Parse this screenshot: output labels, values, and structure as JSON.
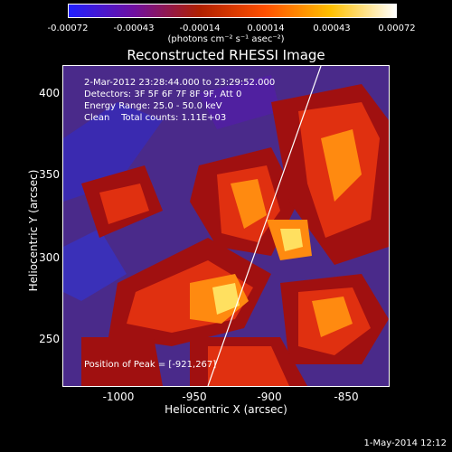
{
  "colorbar": {
    "ticks": [
      "-0.00072",
      "-0.00043",
      "-0.00014",
      "0.00014",
      "0.00043",
      "0.00072"
    ],
    "units": "(photons cm⁻² s⁻¹ asec⁻²)",
    "colors": [
      "#2020ff",
      "#7010a0",
      "#b02000",
      "#ff5000",
      "#ffc000",
      "#ffffff"
    ]
  },
  "title": "Reconstructed RHESSI Image",
  "info": {
    "time": "2-Mar-2012 23:28:44.000 to 23:29:52.000",
    "detectors": "Detectors: 3F 5F 6F 7F 8F 9F, Att 0",
    "energy": "Energy Range: 25.0 - 50.0 keV",
    "clean": "Clean    Total counts: 1.11E+03",
    "peak": "Position of Peak = [-921,267]"
  },
  "axes": {
    "x_label": "Heliocentric X (arcsec)",
    "y_label": "Heliocentric Y (arcsec)",
    "x_ticks": [
      "-1000",
      "-950",
      "-900",
      "-850"
    ],
    "y_ticks": [
      "400",
      "350",
      "300",
      "250"
    ]
  },
  "timestamp": "1-May-2014 12:12"
}
